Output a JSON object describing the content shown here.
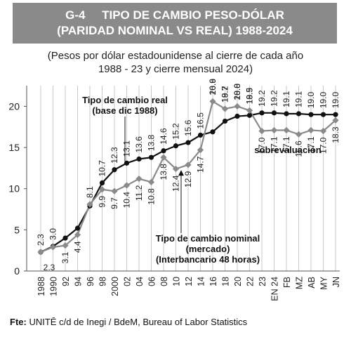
{
  "header": {
    "code": "G-4",
    "title_line1": "TIPO DE CAMBIO PESO-DÓLAR",
    "title_line2": "(PARIDAD NOMINAL VS REAL) 1988-2024"
  },
  "subtitle": {
    "line1": "(Pesos por dólar estadounidense al cierre de cada año",
    "line2": "1988 - 23 y cierre mensual 2024)"
  },
  "source": {
    "prefix": "Fte:",
    "text": "UNITĒ c/d de Inegi / BdeM, Bureau of Labor Statistics"
  },
  "chart_data": {
    "type": "line",
    "categories": [
      "1988",
      "1990",
      "92",
      "94",
      "96",
      "98",
      "2000",
      "02",
      "04",
      "06",
      "08",
      "10",
      "12",
      "14",
      "16",
      "18",
      "20",
      "22",
      "23",
      "EN 24",
      "FB",
      "MZ",
      "AB",
      "MY",
      "JN"
    ],
    "ylim": [
      0,
      22
    ],
    "yticks": [
      0,
      5,
      10,
      15,
      20
    ],
    "grid": "vertical",
    "series": [
      {
        "name": "Tipo de cambio real (base dic 1988)",
        "color": "#111111",
        "marker": "circle",
        "values": [
          2.3,
          3.0,
          4.0,
          5.2,
          7.9,
          10.7,
          12.3,
          13.1,
          13.6,
          13.8,
          14.6,
          15.2,
          15.6,
          16.5,
          16.9,
          18.2,
          18.8,
          18.9,
          19.2,
          19.2,
          19.1,
          19.1,
          19.0,
          19.0,
          19.0
        ],
        "labels": [
          "2.3",
          "3.0",
          "",
          "",
          "",
          "10.7",
          "12.3",
          "13.1",
          "13.6",
          "13.8",
          "14.6",
          "15.2",
          "15.6",
          "16.5",
          "16.9",
          "18.2",
          "18.8",
          "18.9",
          "19.2",
          "19.2",
          "19.1",
          "19.1",
          "19.0",
          "19.0",
          "19.0"
        ]
      },
      {
        "name": "Tipo de cambio nominal (mercado) (Interbancario 48 horas)",
        "color": "#8a8a8a",
        "marker": "diamond",
        "values": [
          2.3,
          2.9,
          3.1,
          4.4,
          8.1,
          9.9,
          9.7,
          10.4,
          11.2,
          10.8,
          13.8,
          12.4,
          12.9,
          14.7,
          20.6,
          19.7,
          20.0,
          19.5,
          17.0,
          17.1,
          17.1,
          16.6,
          17.1,
          17.0,
          18.3
        ],
        "labels": [
          "2.3",
          "",
          "3.1",
          "4.4",
          "8.1",
          "9.9",
          "9.7",
          "10.4",
          "11.2",
          "10.8",
          "13.8",
          "12.4",
          "12.9",
          "14.7",
          "20.6",
          "19.7",
          "20.0",
          "19.5",
          "17.0",
          "17.1",
          "17.1",
          "16.6",
          "17.1",
          "17.0",
          "18.3"
        ]
      }
    ],
    "annotations": {
      "real_label_line1": "Tipo de cambio real",
      "real_label_line2": "(base dic 1988)",
      "nominal_label_line1": "Tipo de cambio nominal",
      "nominal_label_line2": "(mercado)",
      "nominal_label_line3": "(Interbancario 48 horas)",
      "overvaluation": "sobrevaluación"
    }
  }
}
